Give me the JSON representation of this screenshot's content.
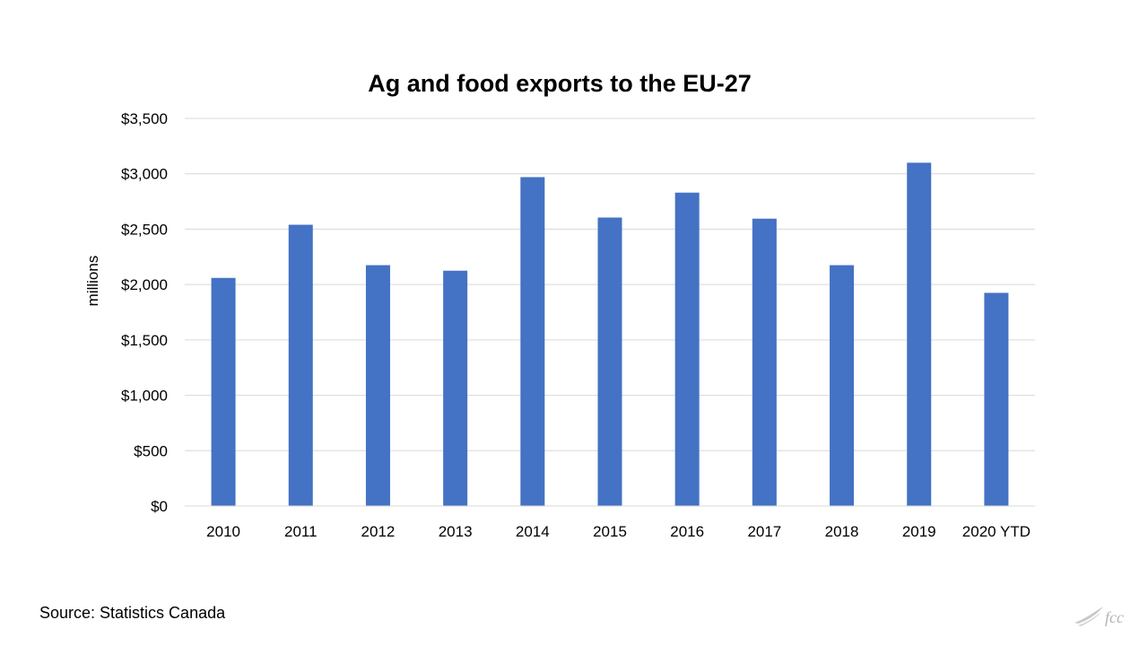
{
  "chart_data": {
    "type": "bar",
    "title": "Ag and food exports to the EU-27",
    "ylabel": "millions",
    "xlabel": "",
    "categories": [
      "2010",
      "2011",
      "2012",
      "2013",
      "2014",
      "2015",
      "2016",
      "2017",
      "2018",
      "2019",
      "2020 YTD"
    ],
    "values": [
      2060,
      2540,
      2175,
      2125,
      2970,
      2605,
      2830,
      2595,
      2175,
      3100,
      1925
    ],
    "ylim": [
      0,
      3500
    ],
    "yticks": [
      0,
      500,
      1000,
      1500,
      2000,
      2500,
      3000,
      3500
    ],
    "ytick_labels": [
      "$0",
      "$500",
      "$1,000",
      "$1,500",
      "$2,000",
      "$2,500",
      "$3,000",
      "$3,500"
    ],
    "grid": true,
    "legend": "none",
    "bar_color": "#4472C4",
    "grid_color": "#D9D9D9"
  },
  "source": "Source: Statistics Canada",
  "logo": {
    "icon": "fcc-logo-icon",
    "text": "fcc",
    "color": "#B4B4B4"
  }
}
